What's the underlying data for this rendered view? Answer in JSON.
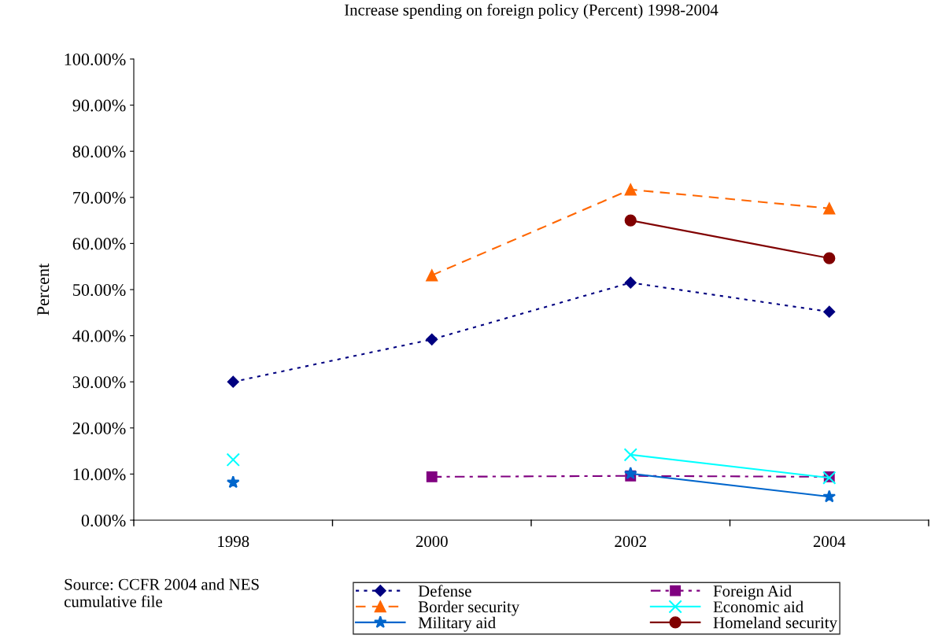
{
  "chart_data": {
    "type": "line",
    "title": "Increase spending on foreign policy (Percent) 1998-2004",
    "ylabel": "Percent",
    "categories": [
      "1998",
      "2000",
      "2002",
      "2004"
    ],
    "series": [
      {
        "name": "Defense",
        "color": "#000080",
        "marker": "diamond",
        "line_style": "dotted",
        "values": [
          30.0,
          39.2,
          51.5,
          45.2
        ]
      },
      {
        "name": "Border security",
        "color": "#ff6600",
        "marker": "triangle",
        "line_style": "dashed",
        "values": [
          null,
          53.1,
          71.7,
          67.6
        ]
      },
      {
        "name": "Military aid",
        "color": "#0066cc",
        "marker": "star",
        "line_style": "solid",
        "values": [
          8.2,
          null,
          10.1,
          5.1
        ]
      },
      {
        "name": "Foreign Aid",
        "color": "#800080",
        "marker": "square",
        "line_style": "dashdot",
        "values": [
          null,
          9.4,
          9.6,
          9.4
        ]
      },
      {
        "name": "Economic aid",
        "color": "#00ffff",
        "marker": "cross",
        "line_style": "solid",
        "values": [
          13.1,
          null,
          14.2,
          9.2
        ]
      },
      {
        "name": "Homeland security",
        "color": "#800000",
        "marker": "circle",
        "line_style": "solid",
        "values": [
          null,
          null,
          65.0,
          56.8
        ]
      }
    ],
    "ylim": [
      0,
      100
    ],
    "yticks": [
      {
        "value": 0,
        "label": "0.00%"
      },
      {
        "value": 10,
        "label": "10.00%"
      },
      {
        "value": 20,
        "label": "20.00%"
      },
      {
        "value": 30,
        "label": "30.00%"
      },
      {
        "value": 40,
        "label": "40.00%"
      },
      {
        "value": 50,
        "label": "50.00%"
      },
      {
        "value": 60,
        "label": "60.00%"
      },
      {
        "value": 70,
        "label": "70.00%"
      },
      {
        "value": 80,
        "label": "80.00%"
      },
      {
        "value": 90,
        "label": "90.00%"
      },
      {
        "value": 100,
        "label": "100.00%"
      }
    ],
    "grid": false,
    "legend": "bottom",
    "annotations": [
      "Source: CCFR 2004 and NES cumulative file"
    ]
  }
}
